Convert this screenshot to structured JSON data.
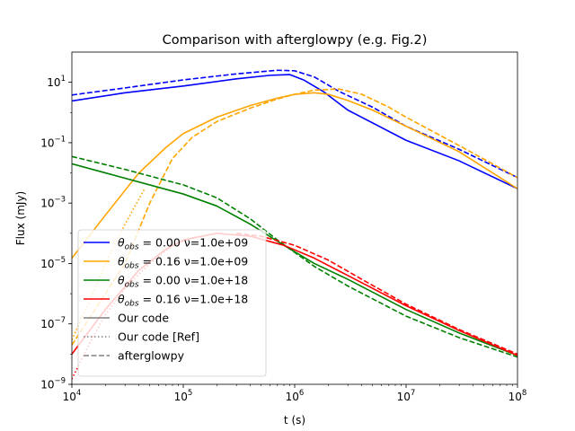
{
  "chart_data": {
    "type": "line",
    "title": "Comparison with afterglowpy (e.g. Fig.2)",
    "xlabel": "t (s)",
    "ylabel": "Flux (mJy)",
    "xscale": "log",
    "yscale": "log",
    "xlim": [
      10000,
      100000000
    ],
    "ylim": [
      1e-09,
      100
    ],
    "xticks": [
      {
        "value": 10000,
        "base": "10",
        "exp": "4"
      },
      {
        "value": 100000,
        "base": "10",
        "exp": "5"
      },
      {
        "value": 1000000,
        "base": "10",
        "exp": "6"
      },
      {
        "value": 10000000,
        "base": "10",
        "exp": "7"
      },
      {
        "value": 100000000,
        "base": "10",
        "exp": "8"
      }
    ],
    "yticks": [
      {
        "value": 1e-09,
        "base": "10",
        "exp": "−9"
      },
      {
        "value": 1e-07,
        "base": "10",
        "exp": "−7"
      },
      {
        "value": 1e-05,
        "base": "10",
        "exp": "−5"
      },
      {
        "value": 0.001,
        "base": "10",
        "exp": "−3"
      },
      {
        "value": 0.1,
        "base": "10",
        "exp": "−1"
      },
      {
        "value": 10,
        "base": "10",
        "exp": "1"
      }
    ],
    "grid": false,
    "legend_position": "lower-left",
    "legend": [
      {
        "theta": "0.00",
        "nu": "ν=1.0e+09",
        "color": "#0000ff",
        "style": "solid"
      },
      {
        "theta": "0.16",
        "nu": "ν=1.0e+09",
        "color": "#ffa500",
        "style": "solid"
      },
      {
        "theta": "0.00",
        "nu": "ν=1.0e+18",
        "color": "#008000",
        "style": "solid"
      },
      {
        "theta": "0.16",
        "nu": "ν=1.0e+18",
        "color": "#ff0000",
        "style": "solid"
      },
      {
        "label": "Our code",
        "color": "#808080",
        "style": "solid"
      },
      {
        "label": "Our code [Ref]",
        "color": "#808080",
        "style": "dotted"
      },
      {
        "label": "afterglowpy",
        "color": "#808080",
        "style": "dashed"
      }
    ],
    "series": [
      {
        "color": "#0000ff",
        "style": "solid",
        "points": [
          [
            10000,
            2.4
          ],
          [
            30000,
            4.5
          ],
          [
            100000,
            7.5
          ],
          [
            300000,
            13
          ],
          [
            600000,
            17
          ],
          [
            900000,
            18
          ],
          [
            1200000,
            12
          ],
          [
            1800000,
            5
          ],
          [
            3000000,
            1.2
          ],
          [
            10000000,
            0.12
          ],
          [
            30000000,
            0.025
          ],
          [
            100000000,
            0.003
          ]
        ]
      },
      {
        "color": "#0000ff",
        "style": "dashed",
        "points": [
          [
            10000,
            3.8
          ],
          [
            30000,
            6.5
          ],
          [
            100000,
            12
          ],
          [
            300000,
            19
          ],
          [
            700000,
            25
          ],
          [
            1000000,
            24
          ],
          [
            1500000,
            15
          ],
          [
            2500000,
            5
          ],
          [
            5000000,
            1.5
          ],
          [
            10000000,
            0.35
          ],
          [
            30000000,
            0.06
          ],
          [
            100000000,
            0.007
          ]
        ]
      },
      {
        "color": "#ffa500",
        "style": "solid",
        "points": [
          [
            10000,
            1.5e-05
          ],
          [
            20000,
            0.0004
          ],
          [
            40000,
            0.01
          ],
          [
            70000,
            0.07
          ],
          [
            100000,
            0.2
          ],
          [
            200000,
            0.7
          ],
          [
            400000,
            1.7
          ],
          [
            700000,
            3
          ],
          [
            1000000,
            4
          ],
          [
            1500000,
            4.5
          ],
          [
            2000000,
            4
          ],
          [
            3000000,
            2.5
          ],
          [
            5000000,
            1.2
          ],
          [
            10000000,
            0.35
          ],
          [
            30000000,
            0.05
          ],
          [
            100000000,
            0.003
          ]
        ]
      },
      {
        "color": "#ffa500",
        "style": "dashed",
        "points": [
          [
            10000,
            2e-08
          ],
          [
            30000,
            1e-05
          ],
          [
            50000,
            0.001
          ],
          [
            80000,
            0.03
          ],
          [
            120000,
            0.15
          ],
          [
            200000,
            0.5
          ],
          [
            400000,
            1.4
          ],
          [
            700000,
            2.8
          ],
          [
            1000000,
            4
          ],
          [
            1500000,
            5.5
          ],
          [
            2500000,
            6
          ],
          [
            4000000,
            4
          ],
          [
            7000000,
            1.5
          ],
          [
            10000000,
            0.7
          ],
          [
            30000000,
            0.08
          ],
          [
            100000000,
            0.007
          ]
        ]
      },
      {
        "color": "#008000",
        "style": "solid",
        "points": [
          [
            10000,
            0.02
          ],
          [
            20000,
            0.01
          ],
          [
            50000,
            0.004
          ],
          [
            100000,
            0.002
          ],
          [
            200000,
            0.0008
          ],
          [
            400000,
            0.0002
          ],
          [
            800000,
            4e-05
          ],
          [
            1500000,
            1e-05
          ],
          [
            3000000,
            3e-06
          ],
          [
            10000000,
            3e-07
          ],
          [
            30000000,
            5e-08
          ],
          [
            100000000,
            9e-09
          ]
        ]
      },
      {
        "color": "#008000",
        "style": "dashed",
        "points": [
          [
            10000,
            0.035
          ],
          [
            30000,
            0.013
          ],
          [
            100000,
            0.004
          ],
          [
            200000,
            0.0015
          ],
          [
            400000,
            0.0003
          ],
          [
            700000,
            6e-05
          ],
          [
            1500000,
            8e-06
          ],
          [
            3000000,
            1.8e-06
          ],
          [
            10000000,
            1.8e-07
          ],
          [
            30000000,
            3.5e-08
          ],
          [
            100000000,
            8e-09
          ]
        ]
      },
      {
        "color": "#ff0000",
        "style": "solid",
        "points": [
          [
            10000,
            1e-08
          ],
          [
            20000,
            3e-07
          ],
          [
            40000,
            6e-06
          ],
          [
            70000,
            3e-05
          ],
          [
            100000,
            6e-05
          ],
          [
            200000,
            0.0001
          ],
          [
            400000,
            8e-05
          ],
          [
            800000,
            4e-05
          ],
          [
            1500000,
            1.5e-05
          ],
          [
            3000000,
            4e-06
          ],
          [
            10000000,
            4e-07
          ],
          [
            30000000,
            6e-08
          ],
          [
            100000000,
            9e-09
          ]
        ]
      },
      {
        "color": "#ff0000",
        "style": "dashed",
        "points": [
          [
            300000,
            0.0001
          ],
          [
            500000,
            8e-05
          ],
          [
            1000000,
            4e-05
          ],
          [
            2000000,
            1.3e-05
          ],
          [
            4000000,
            3e-06
          ],
          [
            10000000,
            4.5e-07
          ],
          [
            30000000,
            6.5e-08
          ],
          [
            100000000,
            1e-08
          ]
        ]
      },
      {
        "color": "#ff0000",
        "style": "dotted",
        "points": [
          [
            10000,
            1.5e-09
          ],
          [
            15000,
            3e-08
          ],
          [
            20000,
            2e-07
          ],
          [
            30000,
            1.5e-06
          ],
          [
            50000,
            1e-05
          ],
          [
            80000,
            4e-05
          ],
          [
            120000,
            7e-05
          ],
          [
            200000,
            0.0001
          ]
        ]
      },
      {
        "color": "#ffa500",
        "style": "dotted",
        "points": [
          [
            10000,
            3e-08
          ],
          [
            15000,
            8e-07
          ],
          [
            20000,
            1e-05
          ],
          [
            30000,
            0.0002
          ],
          [
            45000,
            0.003
          ]
        ]
      }
    ]
  }
}
